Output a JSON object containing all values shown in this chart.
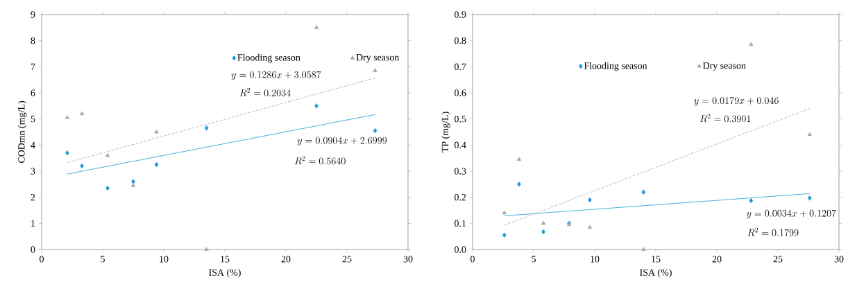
{
  "chart_data": [
    {
      "type": "scatter",
      "xlabel": "ISA (%)",
      "ylabel": "CODmn (mg/L)",
      "xlim": [
        0,
        30
      ],
      "xticks": [
        0,
        5,
        10,
        15,
        20,
        25,
        30
      ],
      "ylim": [
        0,
        9
      ],
      "yticks": [
        0,
        1,
        2,
        3,
        4,
        5,
        6,
        7,
        8,
        9
      ],
      "legend": "top right",
      "series": [
        {
          "name": "Flooding season",
          "marker": "diamond",
          "color": "#1b9ad6",
          "x": [
            2.1,
            3.3,
            5.4,
            7.5,
            9.4,
            13.5,
            22.5,
            27.3
          ],
          "values": [
            3.7,
            3.2,
            2.35,
            2.6,
            3.25,
            4.65,
            5.5,
            4.55
          ]
        },
        {
          "name": "Dry season",
          "marker": "triangle",
          "color": "#a6a8ab",
          "x": [
            2.1,
            3.3,
            5.4,
            7.5,
            9.4,
            13.5,
            22.5,
            27.3
          ],
          "values": [
            5.05,
            5.2,
            3.6,
            2.45,
            4.5,
            0.0,
            8.5,
            6.85
          ]
        },
        {
          "type": "line",
          "line_style": "solid",
          "color": "#1b9ad6",
          "x": [
            2.1,
            27.3
          ],
          "values": [
            2.89,
            5.17
          ]
        },
        {
          "type": "line",
          "line_style": "dashed",
          "color": "#a6a8ab",
          "x": [
            2.1,
            27.3
          ],
          "values": [
            3.33,
            6.57
          ]
        }
      ],
      "annotations": [
        "y = 0.1286x + 3.0587",
        "R^{2} = 0.2034",
        "y = 0.0904x + 2.6999",
        "R^{2} = 0.5640"
      ]
    },
    {
      "type": "scatter",
      "xlabel": "ISA (%)",
      "ylabel": "TP (mg/L)",
      "xlim": [
        0,
        30
      ],
      "xticks": [
        0,
        5,
        10,
        15,
        20,
        25,
        30
      ],
      "ylim": [
        0,
        0.9
      ],
      "yticks": [
        {
          "value": 0,
          "label": "0.0"
        },
        0.1,
        0.2,
        0.3,
        0.4,
        0.5,
        0.6,
        0.7,
        0.8,
        0.9
      ],
      "legend": "top",
      "series": [
        {
          "name": "Flooding season",
          "marker": "diamond",
          "color": "#1b9ad6",
          "x": [
            2.6,
            3.8,
            5.8,
            7.9,
            9.6,
            14.0,
            22.8,
            27.6
          ],
          "values": [
            0.055,
            0.25,
            0.068,
            0.1,
            0.19,
            0.22,
            0.187,
            0.197
          ]
        },
        {
          "name": "Dry season",
          "marker": "triangle",
          "color": "#a6a8ab",
          "x": [
            2.6,
            3.8,
            5.8,
            7.9,
            9.6,
            14.0,
            22.8,
            27.6
          ],
          "values": [
            0.14,
            0.345,
            0.1,
            0.095,
            0.085,
            0.0,
            0.785,
            0.44
          ]
        },
        {
          "type": "line",
          "line_style": "solid",
          "color": "#1b9ad6",
          "x": [
            2.6,
            27.6
          ],
          "values": [
            0.129,
            0.214
          ]
        },
        {
          "type": "line",
          "line_style": "dashed",
          "color": "#a6a8ab",
          "x": [
            2.6,
            27.6
          ],
          "values": [
            0.093,
            0.54
          ]
        }
      ],
      "annotations": [
        "y = 0.0179x + 0.046",
        "R^{2} = 0.3901",
        "y = 0.0034x + 0.1207",
        "R^{2} = 0.1799"
      ]
    }
  ]
}
